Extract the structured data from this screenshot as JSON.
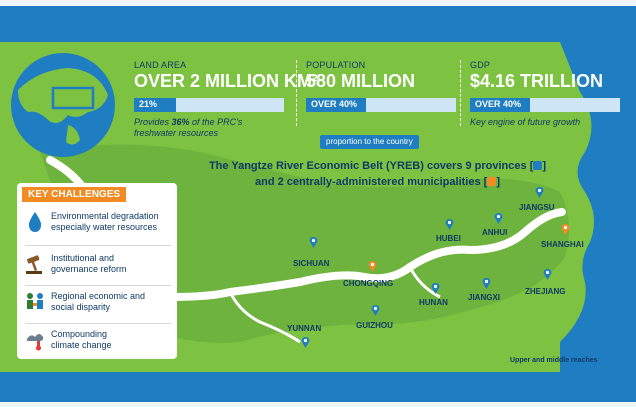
{
  "stats": {
    "land": {
      "label": "LAND AREA",
      "value": "OVER 2 MILLION KM²",
      "bar_text": "21%",
      "bar_fraction": 0.21,
      "note_prefix": "Provides ",
      "note_bold": "36%",
      "note_suffix": " of the PRC’s freshwater resources"
    },
    "population": {
      "label": "POPULATION",
      "value": "580 MILLION",
      "bar_text": "OVER 40%",
      "bar_fraction": 0.4
    },
    "gdp": {
      "label": "GDP",
      "value": "$4.16 TRILLION",
      "bar_text": "OVER 40%",
      "bar_fraction": 0.4,
      "note": "Key engine of future growth"
    },
    "proportion_label": "proportion to the country"
  },
  "yreb_text": {
    "line1": "The Yangtze River Economic Belt (YREB) covers 9 provinces [",
    "line1_end": "]",
    "line2": "and 2 centrally-administered municipalities [",
    "line2_end": "]"
  },
  "key_challenges": {
    "title": "KEY CHALLENGES",
    "items": [
      {
        "icon": "water-drop-icon",
        "line1": "Environmental degradation",
        "line2": "especially water resources"
      },
      {
        "icon": "gavel-icon",
        "line1": "Institutional and",
        "line2": "governance reform"
      },
      {
        "icon": "people-icon",
        "line1": "Regional economic and",
        "line2": "social disparity"
      },
      {
        "icon": "climate-icon",
        "line1": "Compounding",
        "line2": "climate change"
      }
    ]
  },
  "places": {
    "provinces": [
      "SICHUAN",
      "YUNNAN",
      "GUIZHOU",
      "HUNAN",
      "HUBEI",
      "ANHUI",
      "JIANGXI",
      "ZHEJIANG",
      "JIANGSU"
    ],
    "municipalities": [
      "CHONGQING",
      "SHANGHAI"
    ]
  },
  "legend_text": "Upper and middle reaches",
  "colors": {
    "province_pin": "#1f7ec1",
    "municipality_pin": "#f38a22",
    "land": "#7ec242",
    "sea": "#1f7ec1"
  }
}
